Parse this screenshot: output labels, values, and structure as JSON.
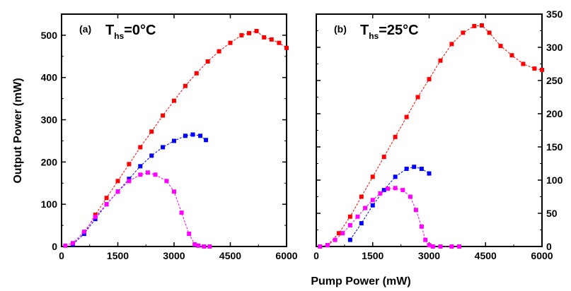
{
  "chart_data": [
    {
      "type": "scatter",
      "panel_label": "(a)",
      "temperature": {
        "symbol": "T",
        "subscript": "hs",
        "value": "=0°C"
      },
      "ylabel": "Output Power (mW)",
      "xlim": [
        0,
        6000
      ],
      "ylim": [
        0,
        550
      ],
      "xticks": [
        0,
        1500,
        3000,
        4500,
        6000
      ],
      "yticks": [
        0,
        100,
        200,
        300,
        400,
        500
      ],
      "y_axis_side": "left",
      "series": [
        {
          "color": "#ff0000",
          "marker": "square",
          "x": [
            300,
            600,
            900,
            1200,
            1500,
            1800,
            2100,
            2400,
            2700,
            3000,
            3300,
            3600,
            3900,
            4200,
            4500,
            4800,
            5000,
            5200,
            5400,
            5600,
            5800,
            6000
          ],
          "y": [
            5,
            30,
            75,
            115,
            155,
            195,
            235,
            272,
            310,
            345,
            380,
            410,
            438,
            462,
            482,
            500,
            505,
            510,
            495,
            490,
            482,
            470
          ]
        },
        {
          "color": "#0000ff",
          "marker": "square",
          "x": [
            300,
            600,
            900,
            1200,
            1500,
            1800,
            2100,
            2400,
            2700,
            3000,
            3300,
            3500,
            3700,
            3850
          ],
          "y": [
            5,
            30,
            65,
            100,
            130,
            160,
            190,
            215,
            235,
            250,
            262,
            265,
            262,
            252
          ]
        },
        {
          "color": "#ff00ff",
          "marker": "square",
          "x": [
            100,
            300,
            600,
            900,
            1200,
            1500,
            1800,
            2100,
            2300,
            2500,
            2800,
            3000,
            3200,
            3400,
            3550,
            3650,
            3800,
            3950
          ],
          "y": [
            2,
            8,
            35,
            70,
            100,
            130,
            155,
            170,
            175,
            170,
            155,
            130,
            80,
            30,
            5,
            2,
            0,
            0
          ]
        }
      ]
    },
    {
      "type": "scatter",
      "panel_label": "(b)",
      "temperature": {
        "symbol": "T",
        "subscript": "hs",
        "value": "=25°C"
      },
      "xlim": [
        0,
        6000
      ],
      "ylim": [
        0,
        350
      ],
      "xticks": [
        0,
        1500,
        3000,
        4500,
        6000
      ],
      "yticks": [
        0,
        50,
        100,
        150,
        200,
        250,
        300,
        350
      ],
      "y_axis_side": "right",
      "series": [
        {
          "color": "#ff0000",
          "marker": "square",
          "x": [
            300,
            600,
            900,
            1200,
            1500,
            1800,
            2100,
            2400,
            2700,
            3000,
            3300,
            3600,
            3900,
            4200,
            4400,
            4600,
            4900,
            5200,
            5500,
            5800,
            6000
          ],
          "y": [
            2,
            20,
            45,
            75,
            105,
            135,
            165,
            195,
            225,
            252,
            280,
            305,
            322,
            332,
            333,
            322,
            302,
            288,
            275,
            268,
            266
          ]
        },
        {
          "color": "#0000ff",
          "marker": "square",
          "x": [
            900,
            1200,
            1500,
            1800,
            2100,
            2400,
            2600,
            2800,
            3000
          ],
          "y": [
            10,
            35,
            62,
            85,
            105,
            117,
            120,
            117,
            110
          ]
        },
        {
          "color": "#ff00ff",
          "marker": "square",
          "x": [
            100,
            300,
            500,
            700,
            900,
            1100,
            1300,
            1500,
            1700,
            1900,
            2100,
            2300,
            2500,
            2650,
            2800,
            2900,
            3000,
            3100,
            3300,
            3600,
            3800
          ],
          "y": [
            0,
            2,
            10,
            20,
            32,
            45,
            58,
            70,
            80,
            87,
            88,
            85,
            75,
            55,
            30,
            10,
            2,
            0,
            0,
            0,
            0
          ]
        }
      ]
    }
  ],
  "shared": {
    "xlabel": "Pump Power (mW)"
  }
}
